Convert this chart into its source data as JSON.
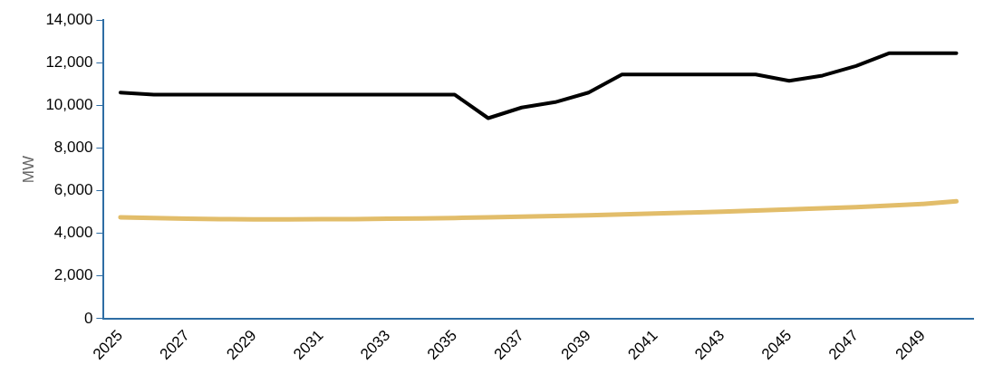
{
  "chart_data": {
    "type": "line",
    "ylabel": "MW",
    "categories": [
      "2025",
      null,
      "2027",
      null,
      "2029",
      null,
      "2031",
      null,
      "2033",
      null,
      "2035",
      null,
      "2037",
      null,
      "2039",
      null,
      "2041",
      null,
      "2043",
      null,
      "2045",
      null,
      "2047",
      null,
      "2049",
      null
    ],
    "series": [
      {
        "color": "#000000",
        "values": [
          10600,
          10500,
          10500,
          10500,
          10500,
          10500,
          10500,
          10500,
          10500,
          10500,
          10500,
          9400,
          9900,
          10150,
          10600,
          11450,
          11450,
          11450,
          11450,
          11450,
          11150,
          11400,
          11850,
          12450,
          12450,
          12450
        ]
      },
      {
        "color": "#e2bd6a",
        "values": [
          4750,
          4720,
          4690,
          4670,
          4650,
          4650,
          4660,
          4670,
          4690,
          4700,
          4720,
          4750,
          4780,
          4810,
          4850,
          4890,
          4930,
          4970,
          5020,
          5070,
          5120,
          5170,
          5230,
          5300,
          5380,
          5500
        ]
      }
    ],
    "ylim": [
      0,
      14000
    ],
    "yticks": [
      {
        "value": 0,
        "label": "0"
      },
      {
        "value": 2000,
        "label": "2,000"
      },
      {
        "value": 4000,
        "label": "4,000"
      },
      {
        "value": 6000,
        "label": "6,000"
      },
      {
        "value": 8000,
        "label": "8,000"
      },
      {
        "value": 10000,
        "label": "10,000"
      },
      {
        "value": 12000,
        "label": "12,000"
      },
      {
        "value": 14000,
        "label": "14,000"
      }
    ],
    "grid": false,
    "legend": false,
    "marker": "none",
    "line_style": "solid"
  }
}
